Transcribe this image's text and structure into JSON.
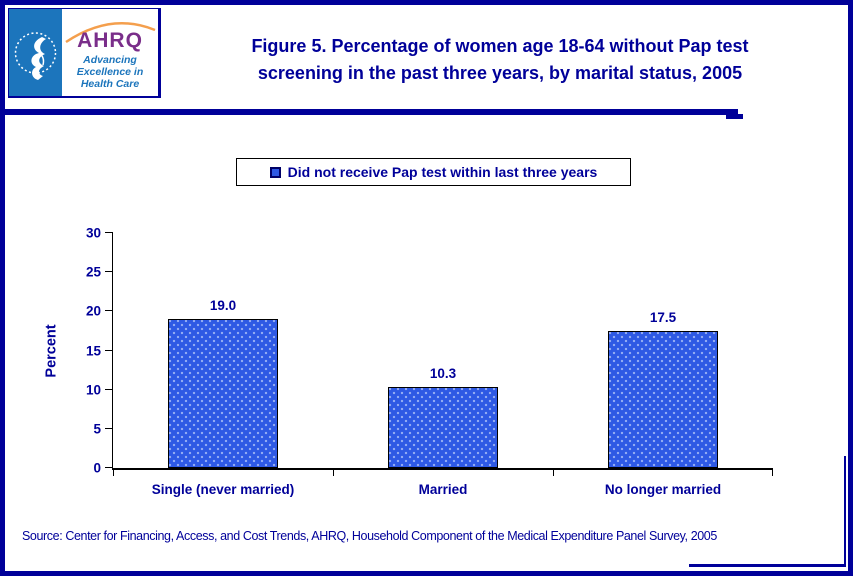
{
  "page": {
    "border_color": "#000099",
    "background": "#FFFFFF"
  },
  "header": {
    "logo": {
      "ahrq_acronym": "AHRQ",
      "tagline_line1": "Advancing",
      "tagline_line2": "Excellence in",
      "tagline_line3": "Health Care",
      "colors": {
        "seal_bg": "#1C75BC",
        "ahrq_purple": "#7A2E8A",
        "arc_orange": "#F49F4D",
        "tagline_blue": "#1C75BC"
      }
    },
    "title_line1": "Figure 5. Percentage of women age 18-64 without Pap test",
    "title_line2": "screening in the past three years, by marital status, 2005",
    "title_color": "#000099"
  },
  "legend": {
    "label": "Did not receive Pap test within last three years",
    "swatch_color": "#2E59E4"
  },
  "chart_data": {
    "type": "bar",
    "title": "Figure 5. Percentage of women age 18-64 without Pap test screening in the past three years, by marital status, 2005",
    "categories": [
      "Single (never married)",
      "Married",
      "No longer married"
    ],
    "series": [
      {
        "name": "Did not receive Pap test within last three years",
        "values": [
          19.0,
          10.3,
          17.5
        ]
      }
    ],
    "data_labels": [
      "19.0",
      "10.3",
      "17.5"
    ],
    "xlabel": "",
    "ylabel": "Percent",
    "ylim": [
      0,
      30
    ],
    "yticks": [
      0,
      5,
      10,
      15,
      20,
      25,
      30
    ],
    "grid": false,
    "legend_position": "top-center",
    "bar_color": "#2E59E4",
    "bar_border_color": "#000000",
    "label_color": "#000099"
  },
  "footer": {
    "source": "Source: Center for Financing, Access, and Cost Trends, AHRQ, Household Component of the Medical Expenditure Panel Survey, 2005"
  }
}
